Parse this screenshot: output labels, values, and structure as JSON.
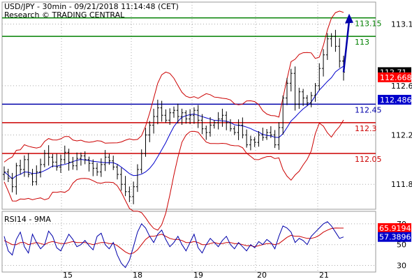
{
  "header": {
    "line1": "USD/JPY - 30min - 09/21/2018 11:14:48 (CET)",
    "line2": "Research © TRADING CENTRAL"
  },
  "chart_data": [
    {
      "type": "candlestick",
      "title": "USD/JPY - 30min",
      "x_ticks": [
        "15",
        "18",
        "19",
        "20",
        "21"
      ],
      "y_ticks": [
        111.8,
        112.2,
        112.6,
        113.1
      ],
      "ylim": [
        111.62,
        113.25
      ],
      "price_tags": [
        {
          "label": "112.71",
          "value": 112.71,
          "bg": "#000000",
          "fg": "#ffffff"
        },
        {
          "label": "112.668",
          "value": 112.668,
          "bg": "#ff0000",
          "fg": "#ffffff"
        },
        {
          "label": "112.486",
          "value": 112.486,
          "bg": "#0000cc",
          "fg": "#ffffff"
        }
      ],
      "levels": [
        {
          "label": "113.15",
          "value": 113.15,
          "color": "#008000"
        },
        {
          "label": "113",
          "value": 113.0,
          "color": "#008000"
        },
        {
          "label": "112.45",
          "value": 112.45,
          "color": "#0000aa"
        },
        {
          "label": "112.3",
          "value": 112.3,
          "color": "#cc0000"
        },
        {
          "label": "112.05",
          "value": 112.05,
          "color": "#cc0000"
        }
      ],
      "close_path": [
        111.9,
        111.85,
        111.78,
        111.95,
        111.92,
        112.0,
        111.88,
        111.82,
        111.9,
        111.96,
        112.05,
        112.02,
        111.98,
        111.94,
        112.0,
        112.06,
        111.98,
        111.95,
        112.01,
        112.03,
        112.0,
        111.97,
        111.93,
        111.9,
        111.96,
        112.02,
        111.99,
        111.94,
        111.88,
        111.8,
        111.74,
        111.7,
        111.78,
        111.92,
        112.05,
        112.2,
        112.28,
        112.35,
        112.42,
        112.36,
        112.32,
        112.38,
        112.4,
        112.35,
        112.38,
        112.33,
        112.36,
        112.4,
        112.32,
        112.25,
        112.22,
        112.28,
        112.3,
        112.33,
        112.36,
        112.3,
        112.25,
        112.22,
        112.28,
        112.2,
        112.12,
        112.16,
        112.14,
        112.2,
        112.18,
        112.22,
        112.2,
        112.12,
        112.26,
        112.5,
        112.62,
        112.7,
        112.45,
        112.55,
        112.5,
        112.46,
        112.52,
        112.6,
        112.74,
        112.85,
        112.98,
        113.0,
        112.92,
        112.8,
        112.71
      ],
      "bollinger": {
        "color": "#cc0000",
        "ma_color": "#0000cc"
      },
      "forecast_arrow": {
        "from": 112.71,
        "to": 113.15,
        "color": "#0000aa"
      }
    },
    {
      "type": "line",
      "title": "RSI14 - 9MA",
      "y_ticks": [
        30,
        50,
        70
      ],
      "ylim": [
        25,
        80
      ],
      "series": [
        {
          "name": "RSI14",
          "color": "#0000aa"
        },
        {
          "name": "9MA",
          "color": "#cc0000"
        }
      ],
      "rsi_path": [
        58,
        44,
        40,
        55,
        62,
        48,
        42,
        60,
        52,
        46,
        50,
        63,
        58,
        47,
        44,
        52,
        60,
        55,
        48,
        50,
        54,
        49,
        45,
        58,
        61,
        50,
        46,
        52,
        40,
        32,
        28,
        35,
        48,
        62,
        70,
        66,
        58,
        52,
        60,
        64,
        55,
        48,
        52,
        58,
        50,
        44,
        52,
        60,
        47,
        42,
        50,
        56,
        52,
        48,
        54,
        58,
        50,
        46,
        52,
        48,
        44,
        50,
        47,
        53,
        50,
        55,
        52,
        46,
        58,
        68,
        66,
        62,
        52,
        56,
        54,
        50,
        58,
        62,
        66,
        70,
        72,
        68,
        62,
        56,
        57.39
      ],
      "ma_path": [
        54,
        52,
        50,
        50,
        52,
        52,
        50,
        51,
        52,
        51,
        50,
        52,
        53,
        52,
        51,
        51,
        52,
        53,
        52,
        52,
        52,
        51,
        50,
        51,
        52,
        52,
        51,
        51,
        49,
        46,
        43,
        41,
        42,
        45,
        50,
        55,
        58,
        58,
        59,
        60,
        58,
        56,
        55,
        55,
        54,
        52,
        52,
        53,
        52,
        50,
        50,
        51,
        52,
        51,
        51,
        52,
        52,
        51,
        51,
        50,
        49,
        49,
        48,
        49,
        50,
        51,
        51,
        50,
        51,
        54,
        57,
        59,
        58,
        58,
        57,
        56,
        56,
        57,
        59,
        62,
        64,
        65.5,
        66,
        65.9,
        65.92
      ],
      "tags": [
        {
          "label": "65.9194",
          "value": 65.9194,
          "bg": "#ff0000",
          "fg": "#ffffff"
        },
        {
          "label": "57.3896",
          "value": 57.3896,
          "bg": "#0000cc",
          "fg": "#ffffff"
        }
      ]
    }
  ]
}
